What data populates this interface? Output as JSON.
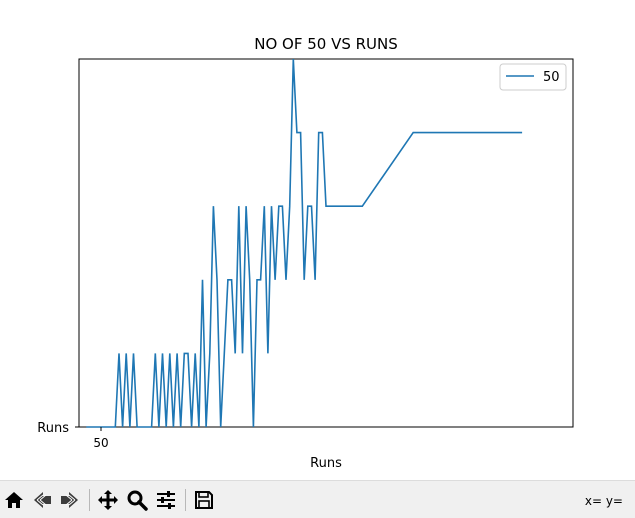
{
  "chart_data": {
    "type": "line",
    "title": "NO OF 50 VS RUNS",
    "xlabel": "Runs",
    "ylabel": "",
    "x_tick_labels": [
      "50"
    ],
    "y_tick_labels": [
      "Runs"
    ],
    "legend": {
      "position": "top-right",
      "entries": [
        "50"
      ]
    },
    "grid": false,
    "xlim": [
      -1,
      67
    ],
    "ylim": [
      0,
      5
    ],
    "series": [
      {
        "name": "50",
        "color": "#1f77b4",
        "x": [
          0,
          1,
          2,
          3,
          4,
          4.5,
          5,
          5.5,
          6,
          6.5,
          7,
          8,
          9,
          9.5,
          10,
          10.5,
          11,
          11.5,
          12,
          12.5,
          13,
          13.5,
          14,
          14.5,
          15,
          15.5,
          16,
          16.5,
          17,
          17.5,
          18,
          18.5,
          19,
          19.5,
          20,
          20.5,
          21,
          21.5,
          22,
          22.5,
          23,
          23.5,
          24,
          24.5,
          25,
          25.5,
          26,
          26.5,
          27,
          27.5,
          28,
          28.5,
          29,
          29.5,
          30,
          30.5,
          31,
          31.5,
          32,
          32.5,
          33,
          33.5,
          34,
          34.5,
          35,
          35.5,
          36,
          37,
          38,
          45,
          50,
          60
        ],
        "y": [
          0,
          0,
          0,
          0,
          0,
          1,
          0,
          1,
          0,
          1,
          0,
          0,
          0,
          1,
          0,
          1,
          0,
          1,
          0,
          1,
          0,
          1,
          1,
          0,
          1,
          0,
          2,
          0,
          1,
          3,
          2,
          0,
          1,
          2,
          2,
          1,
          3,
          1,
          3,
          2,
          0,
          2,
          2,
          3,
          1,
          3,
          2,
          3,
          3,
          2,
          3,
          5,
          4,
          4,
          2,
          3,
          3,
          2,
          4,
          4,
          3,
          3,
          3,
          3,
          3,
          3,
          3,
          3,
          3,
          4,
          4,
          4
        ]
      }
    ]
  },
  "toolbar": {
    "buttons": [
      {
        "name": "home-button",
        "icon": "home-icon"
      },
      {
        "name": "back-button",
        "icon": "arrow-left-icon"
      },
      {
        "name": "forward-button",
        "icon": "arrow-right-icon"
      },
      {
        "name": "pan-button",
        "icon": "move-icon"
      },
      {
        "name": "zoom-button",
        "icon": "magnifier-icon"
      },
      {
        "name": "configure-button",
        "icon": "sliders-icon"
      },
      {
        "name": "save-button",
        "icon": "floppy-icon"
      }
    ],
    "coordinates": "x= y="
  }
}
